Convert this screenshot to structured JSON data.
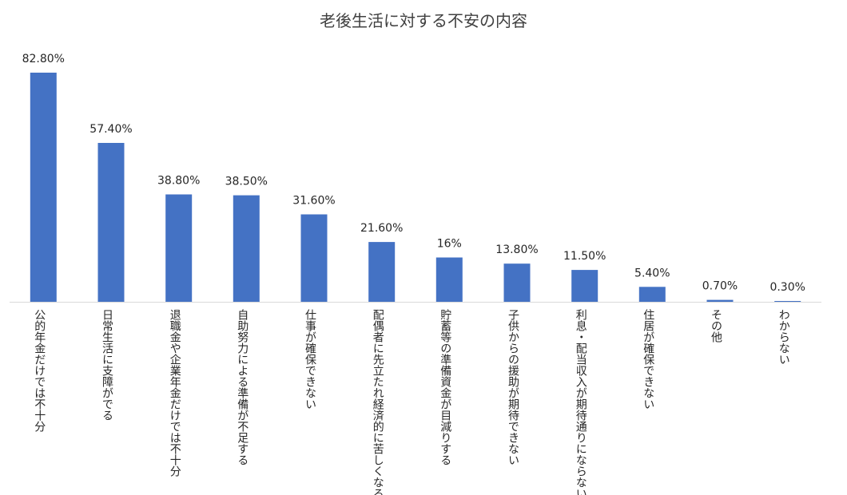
{
  "chart_data": {
    "type": "bar",
    "title": "老後生活に対する不安の内容",
    "xlabel": "",
    "ylabel": "",
    "ylim": [
      0,
      100
    ],
    "grid": false,
    "legend": "none",
    "bar_color": "#4472C4",
    "categories": [
      "公的年金だけでは不十分",
      "日常生活に支障がでる",
      "退職金や企業年金だけでは不十分",
      "自助努力による準備が不足する",
      "仕事が確保できない",
      "配偶者に先立たれ経済的に苦しくなる",
      "貯蓄等の準備資金が目減りする",
      "子供からの援助が期待できない",
      "利息・配当収入が期待通りにならない",
      "住居が確保できない",
      "その他",
      "わからない"
    ],
    "values": [
      82.8,
      57.4,
      38.8,
      38.5,
      31.6,
      21.6,
      16,
      13.8,
      11.5,
      5.4,
      0.7,
      0.3
    ],
    "data_labels": [
      "82.80%",
      "57.40%",
      "38.80%",
      "38.50%",
      "31.60%",
      "21.60%",
      "16%",
      "13.80%",
      "11.50%",
      "5.40%",
      "0.70%",
      "0.30%"
    ]
  }
}
